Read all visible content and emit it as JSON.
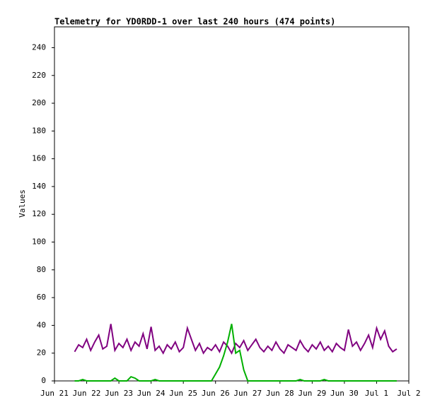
{
  "chart_data": {
    "type": "line",
    "title": "Telemetry for YD0RDD-1 over last 240 hours (474 points)",
    "y_label": "Values",
    "x": [
      0.625,
      0.75,
      0.875,
      1,
      1.125,
      1.25,
      1.375,
      1.5,
      1.625,
      1.75,
      1.875,
      2,
      2.125,
      2.25,
      2.375,
      2.5,
      2.625,
      2.75,
      2.875,
      3,
      3.125,
      3.25,
      3.375,
      3.5,
      3.625,
      3.75,
      3.875,
      4,
      4.125,
      4.25,
      4.375,
      4.5,
      4.625,
      4.75,
      4.875,
      5,
      5.125,
      5.25,
      5.375,
      5.5,
      5.625,
      5.75,
      5.875,
      6,
      6.125,
      6.25,
      6.375,
      6.5,
      6.625,
      6.75,
      6.875,
      7,
      7.125,
      7.25,
      7.375,
      7.5,
      7.625,
      7.75,
      7.875,
      8,
      8.125,
      8.25,
      8.375,
      8.5,
      8.625,
      8.75,
      8.875,
      9,
      9.125,
      9.25,
      9.375,
      9.5,
      9.625,
      9.75,
      9.875,
      10,
      10.125,
      10.25,
      10.375,
      10.5,
      10.625
    ],
    "series": [
      {
        "color": "#800080",
        "values": [
          21,
          26,
          24,
          30,
          22,
          28,
          33,
          23,
          25,
          41,
          22,
          27,
          24,
          30,
          22,
          28,
          25,
          34,
          23,
          39,
          22,
          25,
          20,
          26,
          23,
          28,
          21,
          24,
          38,
          30,
          22,
          27,
          20,
          24,
          22,
          26,
          21,
          28,
          25,
          20,
          27,
          24,
          29,
          22,
          26,
          30,
          24,
          21,
          25,
          22,
          28,
          23,
          20,
          26,
          24,
          22,
          29,
          24,
          21,
          26,
          23,
          28,
          22,
          25,
          21,
          27,
          24,
          22,
          37,
          25,
          28,
          22,
          27,
          33,
          24,
          38,
          30,
          36,
          25,
          21,
          23
        ]
      },
      {
        "color": "#00b000",
        "values": [
          0,
          0,
          1,
          0,
          0,
          0,
          0,
          0,
          0,
          0,
          2,
          0,
          0,
          0,
          3,
          2,
          0,
          0,
          0,
          0,
          1,
          0,
          0,
          0,
          0,
          0,
          0,
          0,
          0,
          0,
          0,
          0,
          0,
          0,
          0,
          5,
          10,
          18,
          28,
          41,
          20,
          22,
          8,
          0,
          0,
          0,
          0,
          0,
          0,
          0,
          0,
          0,
          0,
          0,
          0,
          0,
          1,
          0,
          0,
          0,
          0,
          0,
          1,
          0,
          0,
          0,
          0,
          0,
          0,
          0,
          0,
          0,
          0,
          0,
          0,
          0,
          0,
          0,
          0,
          0,
          0
        ]
      }
    ],
    "xlim": [
      0,
      11
    ],
    "xticks": [
      {
        "value": 0,
        "label": "Jun 21"
      },
      {
        "value": 1,
        "label": "Jun 22"
      },
      {
        "value": 2,
        "label": "Jun 23"
      },
      {
        "value": 3,
        "label": "Jun 24"
      },
      {
        "value": 4,
        "label": "Jun 25"
      },
      {
        "value": 5,
        "label": "Jun 26"
      },
      {
        "value": 6,
        "label": "Jun 27"
      },
      {
        "value": 7,
        "label": "Jun 28"
      },
      {
        "value": 8,
        "label": "Jun 29"
      },
      {
        "value": 9,
        "label": "Jun 30"
      },
      {
        "value": 10,
        "label": "Jul 1"
      },
      {
        "value": 11,
        "label": "Jul 2"
      }
    ],
    "ylim": [
      0,
      255
    ],
    "yticks": [
      0,
      20,
      40,
      60,
      80,
      100,
      120,
      140,
      160,
      180,
      200,
      220,
      240
    ]
  }
}
